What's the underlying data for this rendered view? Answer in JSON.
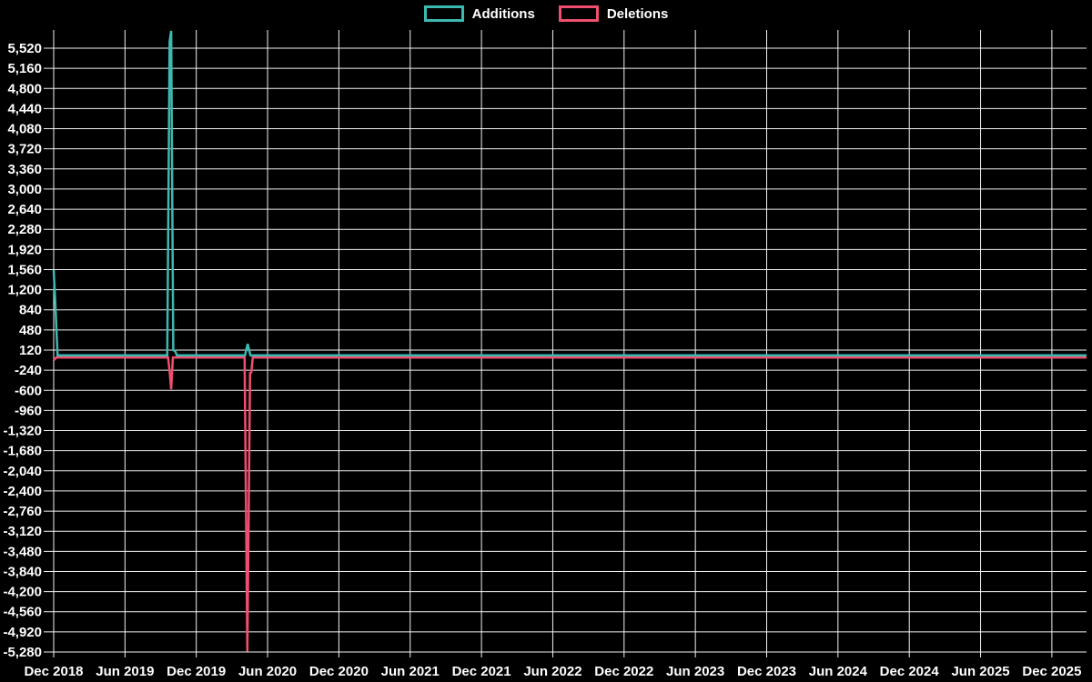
{
  "legend": {
    "items": [
      {
        "label": "Additions",
        "color": "#3cb9b1"
      },
      {
        "label": "Deletions",
        "color": "#ef4f6e"
      }
    ]
  },
  "chart_data": {
    "type": "line",
    "title": "",
    "background": "#000000",
    "text_color": "#ffffff",
    "grid": true,
    "grid_color": "#f2f2f2",
    "legend_position": "top-center",
    "y_axis": {
      "max_tick": 5520,
      "min_tick": -5280,
      "tick_step": 360,
      "tick_labels": [
        "5,520",
        "5,160",
        "4,800",
        "4,440",
        "4,080",
        "3,720",
        "3,360",
        "3,000",
        "2,640",
        "2,280",
        "1,920",
        "1,560",
        "1,200",
        "840",
        "480",
        "120",
        "-240",
        "-600",
        "-960",
        "-1,320",
        "-1,680",
        "-2,040",
        "-2,400",
        "-2,760",
        "-3,120",
        "-3,480",
        "-3,840",
        "-4,200",
        "-4,560",
        "-4,920",
        "-5,280"
      ]
    },
    "x_axis": {
      "interval_months": 6,
      "tick_labels": [
        "Dec 2018",
        "Jun 2019",
        "Dec 2019",
        "Jun 2020",
        "Dec 2020",
        "Jun 2021",
        "Dec 2021",
        "Jun 2022",
        "Dec 2022",
        "Jun 2023",
        "Dec 2023",
        "Jun 2024",
        "Dec 2024",
        "Jun 2025",
        "Dec 2025"
      ]
    },
    "series": [
      {
        "name": "Deletions",
        "color": "#ef4f6e",
        "points": [
          [
            "2018-12-01",
            -60
          ],
          [
            "2018-12-08",
            -12
          ],
          [
            "2019-09-20",
            -12
          ],
          [
            "2019-09-24",
            -260
          ],
          [
            "2019-09-28",
            -580
          ],
          [
            "2019-10-02",
            -12
          ],
          [
            "2020-04-03",
            -12
          ],
          [
            "2020-04-10",
            -5270
          ],
          [
            "2020-04-17",
            -290
          ],
          [
            "2020-04-20",
            -280
          ],
          [
            "2020-04-24",
            -12
          ],
          [
            "2026-03-01",
            -12
          ]
        ]
      },
      {
        "name": "Additions",
        "color": "#3cb9b1",
        "points": [
          [
            "2018-12-01",
            1550
          ],
          [
            "2018-12-05",
            990
          ],
          [
            "2018-12-11",
            25
          ],
          [
            "2019-09-18",
            25
          ],
          [
            "2019-09-24",
            5640
          ],
          [
            "2019-09-28",
            5830
          ],
          [
            "2019-10-03",
            120
          ],
          [
            "2019-10-08",
            100
          ],
          [
            "2019-10-12",
            25
          ],
          [
            "2020-04-04",
            25
          ],
          [
            "2020-04-11",
            230
          ],
          [
            "2020-04-18",
            25
          ],
          [
            "2026-03-01",
            25
          ]
        ]
      }
    ]
  }
}
